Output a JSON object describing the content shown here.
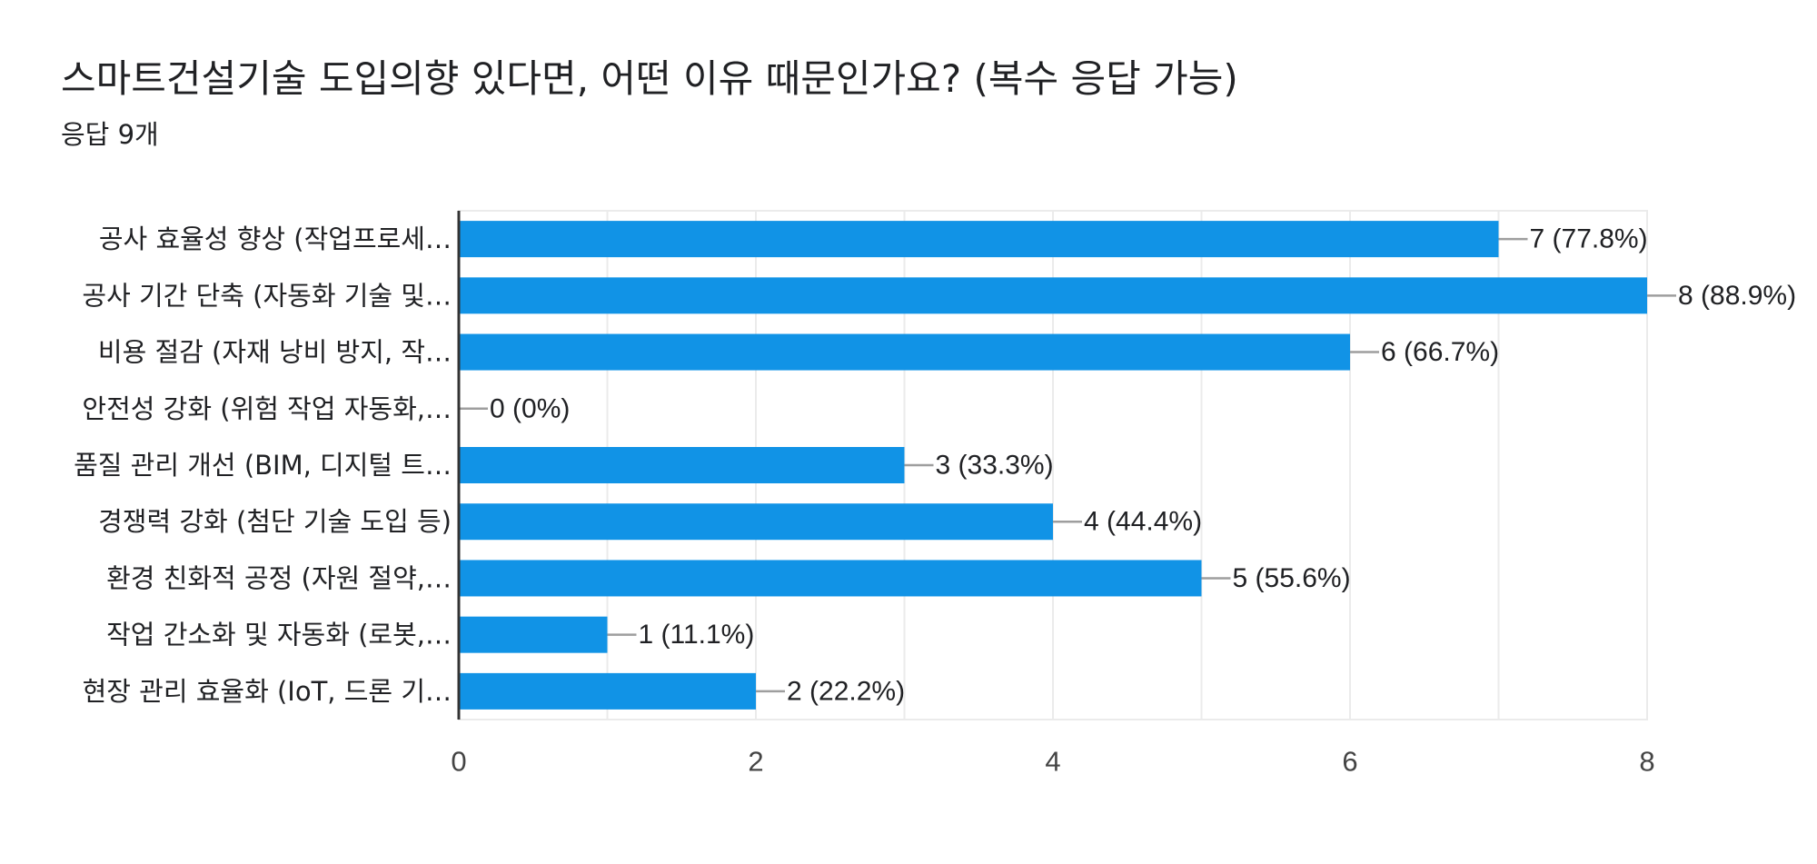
{
  "header": {
    "title": "스마트건설기술 도입의향 있다면, 어떤 이유 때문인가요? (복수 응답 가능)",
    "response_count": "응답 9개"
  },
  "colors": {
    "bar": "#1193e6",
    "grid": "#ebebeb",
    "axis": "#333333",
    "connector": "#9e9e9e"
  },
  "chart_data": {
    "type": "bar",
    "orientation": "horizontal",
    "title": "스마트건설기술 도입의향 있다면, 어떤 이유 때문인가요? (복수 응답 가능)",
    "subtitle": "응답 9개",
    "categories": [
      "공사 효율성 향상 (작업프로세…",
      "공사 기간 단축 (자동화 기술 및…",
      "비용 절감 (자재 낭비 방지, 작…",
      "안전성 강화 (위험 작업 자동화,…",
      "품질 관리 개선 (BIM, 디지털 트…",
      "경쟁력 강화 (첨단 기술 도입 등)",
      "환경 친화적 공정 (자원 절약,…",
      "작업 간소화 및 자동화 (로봇,…",
      "현장 관리 효율화 (IoT, 드론 기…"
    ],
    "values": [
      7,
      8,
      6,
      0,
      3,
      4,
      5,
      1,
      2
    ],
    "value_labels": [
      "7 (77.8%)",
      "8 (88.9%)",
      "6 (66.7%)",
      "0 (0%)",
      "3 (33.3%)",
      "4 (44.4%)",
      "5 (55.6%)",
      "1 (11.1%)",
      "2 (22.2%)"
    ],
    "xticks": [
      "0",
      "2",
      "4",
      "6",
      "8"
    ],
    "xlim": [
      0,
      8
    ],
    "grid": true
  }
}
